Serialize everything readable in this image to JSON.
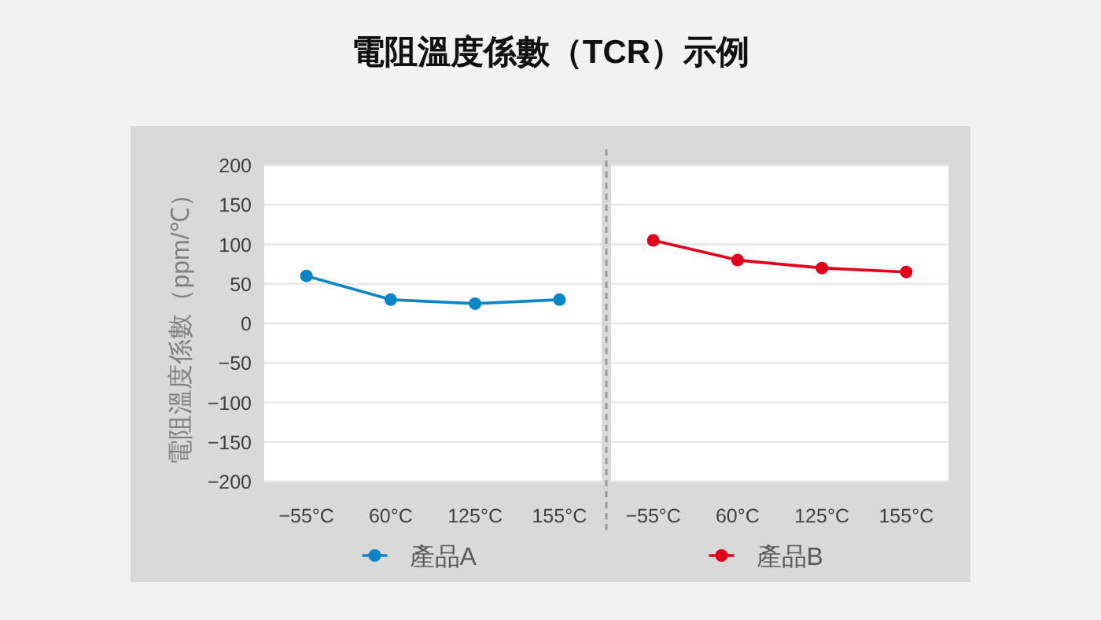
{
  "chart_data": [
    {
      "type": "line",
      "title": "電阻溫度係數（TCR）示例",
      "ylabel": "電阻溫度係數（ppm/℃）",
      "categories": [
        "−55°C",
        "60°C",
        "125°C",
        "155°C"
      ],
      "series": [
        {
          "name": "產品A",
          "color": "#0a86c8",
          "values": [
            60,
            30,
            25,
            30
          ]
        }
      ],
      "ylim": [
        -200,
        200
      ],
      "yticks": [
        -200,
        -150,
        -100,
        -50,
        0,
        50,
        100,
        150,
        200
      ],
      "grid": "y",
      "legend": "bottom",
      "marker": "circle"
    },
    {
      "type": "line",
      "categories": [
        "−55°C",
        "60°C",
        "125°C",
        "155°C"
      ],
      "series": [
        {
          "name": "產品B",
          "color": "#e0001b",
          "values": [
            105,
            80,
            70,
            65
          ]
        }
      ],
      "ylim": [
        -200,
        200
      ],
      "yticks": [
        -200,
        -150,
        -100,
        -50,
        0,
        50,
        100,
        150,
        200
      ],
      "grid": "y",
      "legend": "bottom",
      "marker": "circle",
      "tick_labels": "x"
    }
  ]
}
